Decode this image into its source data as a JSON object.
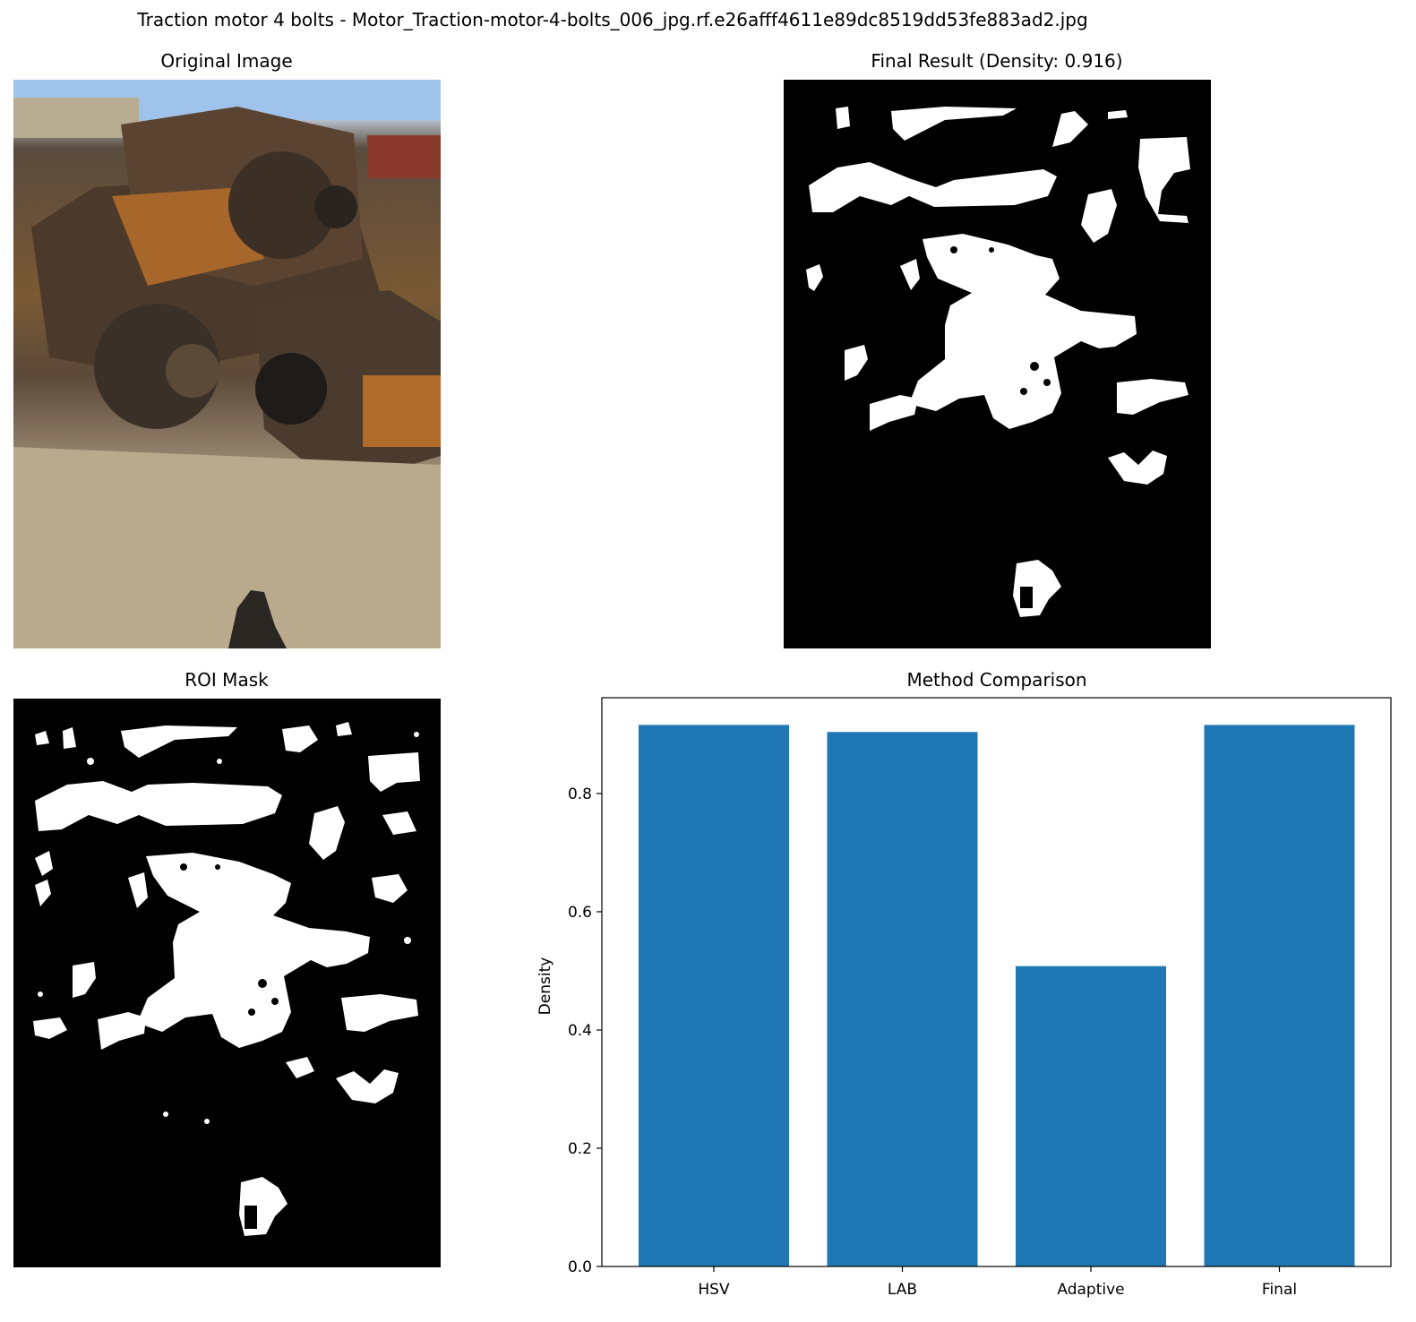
{
  "figure": {
    "suptitle": "Traction motor 4 bolts - Motor_Traction-motor-4-bolts_006_jpg.rf.e26afff4611e89dc8519dd53fe883ad2.jpg"
  },
  "panels": {
    "original": {
      "title": "Original Image"
    },
    "final": {
      "title": "Final Result (Density: 0.916)"
    },
    "roi": {
      "title": "ROI Mask"
    }
  },
  "chart_data": {
    "type": "bar",
    "title": "Method Comparison",
    "xlabel": "",
    "ylabel": "Density",
    "categories": [
      "HSV",
      "LAB",
      "Adaptive",
      "Final"
    ],
    "values": [
      0.916,
      0.904,
      0.508,
      0.916
    ],
    "ylim": [
      0,
      0.962
    ],
    "yticks": [
      0.0,
      0.2,
      0.4,
      0.6,
      0.8
    ],
    "ytick_labels": [
      "0.0",
      "0.2",
      "0.4",
      "0.6",
      "0.8"
    ],
    "bar_color": "#1f77b4",
    "grid": false
  }
}
